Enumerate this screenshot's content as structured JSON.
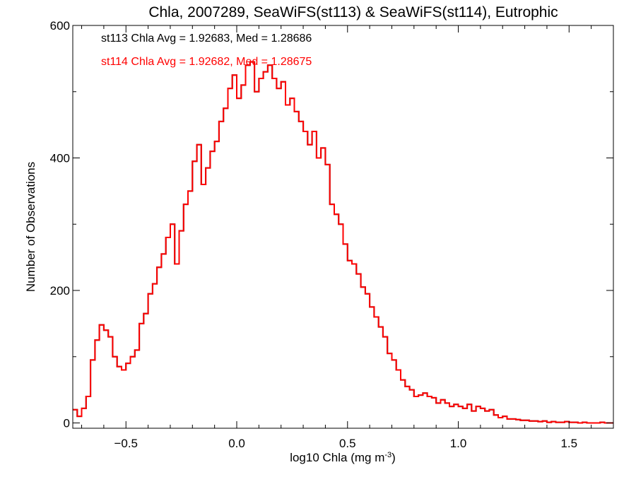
{
  "chart_data": {
    "type": "histogram",
    "title": "Chla, 2007289, SeaWiFS(st113) & SeaWiFS(st114), Eutrophic",
    "xlabel": "log10 Chla (mg m",
    "xlabel_sup": "-3",
    "xlabel_close": ")",
    "ylabel": "Number of Observations",
    "xlim": [
      -0.74,
      1.7
    ],
    "ylim": [
      -8,
      600
    ],
    "x_ticks": [
      -0.5,
      0.0,
      0.5,
      1.0,
      1.5
    ],
    "x_tick_labels": [
      "−0.5",
      "0.0",
      "0.5",
      "1.0",
      "1.5"
    ],
    "y_ticks": [
      0,
      200,
      400,
      600
    ],
    "y_tick_labels": [
      "0",
      "200",
      "400",
      "600"
    ],
    "grid": false,
    "annotations": [
      {
        "id": "st113",
        "text": "st113 Chla Avg = 1.92683, Med = 1.28686",
        "color": "#000000"
      },
      {
        "id": "st114",
        "text": "st114 Chla Avg = 1.92682, Med = 1.28675",
        "color": "#ff0000"
      }
    ],
    "series": [
      {
        "name": "st113",
        "color": "#000000",
        "points": [
          [
            -0.74,
            20
          ],
          [
            -0.72,
            10
          ],
          [
            -0.7,
            22
          ],
          [
            -0.68,
            40
          ],
          [
            -0.66,
            95
          ],
          [
            -0.64,
            125
          ],
          [
            -0.62,
            148
          ],
          [
            -0.6,
            140
          ],
          [
            -0.58,
            130
          ],
          [
            -0.56,
            100
          ],
          [
            -0.54,
            85
          ],
          [
            -0.52,
            80
          ],
          [
            -0.5,
            90
          ],
          [
            -0.48,
            100
          ],
          [
            -0.46,
            110
          ],
          [
            -0.44,
            150
          ],
          [
            -0.42,
            165
          ],
          [
            -0.4,
            195
          ],
          [
            -0.38,
            210
          ],
          [
            -0.36,
            235
          ],
          [
            -0.34,
            255
          ],
          [
            -0.32,
            280
          ],
          [
            -0.3,
            300
          ],
          [
            -0.28,
            240
          ],
          [
            -0.26,
            290
          ],
          [
            -0.24,
            330
          ],
          [
            -0.22,
            350
          ],
          [
            -0.2,
            395
          ],
          [
            -0.18,
            420
          ],
          [
            -0.16,
            360
          ],
          [
            -0.14,
            385
          ],
          [
            -0.12,
            410
          ],
          [
            -0.1,
            425
          ],
          [
            -0.08,
            455
          ],
          [
            -0.06,
            475
          ],
          [
            -0.04,
            505
          ],
          [
            -0.02,
            525
          ],
          [
            0.0,
            490
          ],
          [
            0.02,
            510
          ],
          [
            0.04,
            540
          ],
          [
            0.06,
            545
          ],
          [
            0.08,
            500
          ],
          [
            0.1,
            520
          ],
          [
            0.12,
            530
          ],
          [
            0.14,
            540
          ],
          [
            0.16,
            520
          ],
          [
            0.18,
            505
          ],
          [
            0.2,
            515
          ],
          [
            0.22,
            480
          ],
          [
            0.24,
            490
          ],
          [
            0.26,
            470
          ],
          [
            0.28,
            455
          ],
          [
            0.3,
            440
          ],
          [
            0.32,
            420
          ],
          [
            0.34,
            440
          ],
          [
            0.36,
            400
          ],
          [
            0.38,
            415
          ],
          [
            0.4,
            390
          ],
          [
            0.42,
            330
          ],
          [
            0.44,
            315
          ],
          [
            0.46,
            300
          ],
          [
            0.48,
            270
          ],
          [
            0.5,
            245
          ],
          [
            0.52,
            240
          ],
          [
            0.54,
            225
          ],
          [
            0.56,
            205
          ],
          [
            0.58,
            195
          ],
          [
            0.6,
            175
          ],
          [
            0.62,
            160
          ],
          [
            0.64,
            145
          ],
          [
            0.66,
            130
          ],
          [
            0.68,
            105
          ],
          [
            0.7,
            95
          ],
          [
            0.72,
            80
          ],
          [
            0.74,
            65
          ],
          [
            0.76,
            55
          ],
          [
            0.78,
            50
          ],
          [
            0.8,
            40
          ],
          [
            0.82,
            42
          ],
          [
            0.84,
            45
          ],
          [
            0.86,
            40
          ],
          [
            0.88,
            38
          ],
          [
            0.9,
            30
          ],
          [
            0.92,
            35
          ],
          [
            0.94,
            30
          ],
          [
            0.96,
            25
          ],
          [
            0.98,
            28
          ],
          [
            1.0,
            25
          ],
          [
            1.02,
            22
          ],
          [
            1.04,
            28
          ],
          [
            1.06,
            18
          ],
          [
            1.08,
            25
          ],
          [
            1.1,
            22
          ],
          [
            1.12,
            18
          ],
          [
            1.14,
            20
          ],
          [
            1.16,
            12
          ],
          [
            1.18,
            8
          ],
          [
            1.2,
            10
          ],
          [
            1.22,
            6
          ],
          [
            1.24,
            6
          ],
          [
            1.26,
            5
          ],
          [
            1.28,
            4
          ],
          [
            1.3,
            4
          ],
          [
            1.32,
            3
          ],
          [
            1.34,
            3
          ],
          [
            1.36,
            2
          ],
          [
            1.38,
            3
          ],
          [
            1.4,
            1
          ],
          [
            1.42,
            2
          ],
          [
            1.44,
            1
          ],
          [
            1.46,
            1
          ],
          [
            1.48,
            2
          ],
          [
            1.5,
            1
          ],
          [
            1.52,
            1
          ],
          [
            1.54,
            0
          ],
          [
            1.56,
            1
          ],
          [
            1.58,
            0
          ],
          [
            1.6,
            0
          ],
          [
            1.62,
            0
          ],
          [
            1.64,
            1
          ],
          [
            1.66,
            0
          ],
          [
            1.68,
            0
          ],
          [
            1.7,
            0
          ]
        ]
      },
      {
        "name": "st114",
        "color": "#ff0000",
        "points": [
          [
            -0.74,
            20
          ],
          [
            -0.72,
            10
          ],
          [
            -0.7,
            22
          ],
          [
            -0.68,
            40
          ],
          [
            -0.66,
            95
          ],
          [
            -0.64,
            125
          ],
          [
            -0.62,
            148
          ],
          [
            -0.6,
            140
          ],
          [
            -0.58,
            130
          ],
          [
            -0.56,
            100
          ],
          [
            -0.54,
            85
          ],
          [
            -0.52,
            80
          ],
          [
            -0.5,
            90
          ],
          [
            -0.48,
            100
          ],
          [
            -0.46,
            110
          ],
          [
            -0.44,
            150
          ],
          [
            -0.42,
            165
          ],
          [
            -0.4,
            195
          ],
          [
            -0.38,
            210
          ],
          [
            -0.36,
            235
          ],
          [
            -0.34,
            255
          ],
          [
            -0.32,
            280
          ],
          [
            -0.3,
            300
          ],
          [
            -0.28,
            240
          ],
          [
            -0.26,
            290
          ],
          [
            -0.24,
            330
          ],
          [
            -0.22,
            350
          ],
          [
            -0.2,
            395
          ],
          [
            -0.18,
            420
          ],
          [
            -0.16,
            360
          ],
          [
            -0.14,
            385
          ],
          [
            -0.12,
            410
          ],
          [
            -0.1,
            425
          ],
          [
            -0.08,
            455
          ],
          [
            -0.06,
            475
          ],
          [
            -0.04,
            505
          ],
          [
            -0.02,
            525
          ],
          [
            0.0,
            490
          ],
          [
            0.02,
            510
          ],
          [
            0.04,
            540
          ],
          [
            0.06,
            545
          ],
          [
            0.08,
            500
          ],
          [
            0.1,
            520
          ],
          [
            0.12,
            530
          ],
          [
            0.14,
            540
          ],
          [
            0.16,
            520
          ],
          [
            0.18,
            505
          ],
          [
            0.2,
            515
          ],
          [
            0.22,
            480
          ],
          [
            0.24,
            490
          ],
          [
            0.26,
            470
          ],
          [
            0.28,
            455
          ],
          [
            0.3,
            440
          ],
          [
            0.32,
            420
          ],
          [
            0.34,
            440
          ],
          [
            0.36,
            400
          ],
          [
            0.38,
            415
          ],
          [
            0.4,
            390
          ],
          [
            0.42,
            330
          ],
          [
            0.44,
            315
          ],
          [
            0.46,
            300
          ],
          [
            0.48,
            270
          ],
          [
            0.5,
            245
          ],
          [
            0.52,
            240
          ],
          [
            0.54,
            225
          ],
          [
            0.56,
            205
          ],
          [
            0.58,
            195
          ],
          [
            0.6,
            175
          ],
          [
            0.62,
            160
          ],
          [
            0.64,
            145
          ],
          [
            0.66,
            130
          ],
          [
            0.68,
            105
          ],
          [
            0.7,
            95
          ],
          [
            0.72,
            80
          ],
          [
            0.74,
            65
          ],
          [
            0.76,
            55
          ],
          [
            0.78,
            50
          ],
          [
            0.8,
            40
          ],
          [
            0.82,
            42
          ],
          [
            0.84,
            45
          ],
          [
            0.86,
            40
          ],
          [
            0.88,
            38
          ],
          [
            0.9,
            30
          ],
          [
            0.92,
            35
          ],
          [
            0.94,
            30
          ],
          [
            0.96,
            25
          ],
          [
            0.98,
            28
          ],
          [
            1.0,
            25
          ],
          [
            1.02,
            22
          ],
          [
            1.04,
            28
          ],
          [
            1.06,
            18
          ],
          [
            1.08,
            25
          ],
          [
            1.1,
            22
          ],
          [
            1.12,
            18
          ],
          [
            1.14,
            20
          ],
          [
            1.16,
            12
          ],
          [
            1.18,
            8
          ],
          [
            1.2,
            10
          ],
          [
            1.22,
            6
          ],
          [
            1.24,
            6
          ],
          [
            1.26,
            5
          ],
          [
            1.28,
            4
          ],
          [
            1.3,
            4
          ],
          [
            1.32,
            3
          ],
          [
            1.34,
            3
          ],
          [
            1.36,
            2
          ],
          [
            1.38,
            3
          ],
          [
            1.4,
            1
          ],
          [
            1.42,
            2
          ],
          [
            1.44,
            1
          ],
          [
            1.46,
            1
          ],
          [
            1.48,
            2
          ],
          [
            1.5,
            1
          ],
          [
            1.52,
            1
          ],
          [
            1.54,
            0
          ],
          [
            1.56,
            1
          ],
          [
            1.58,
            0
          ],
          [
            1.6,
            0
          ],
          [
            1.62,
            0
          ],
          [
            1.64,
            1
          ],
          [
            1.66,
            0
          ],
          [
            1.68,
            0
          ],
          [
            1.7,
            0
          ]
        ]
      }
    ]
  }
}
